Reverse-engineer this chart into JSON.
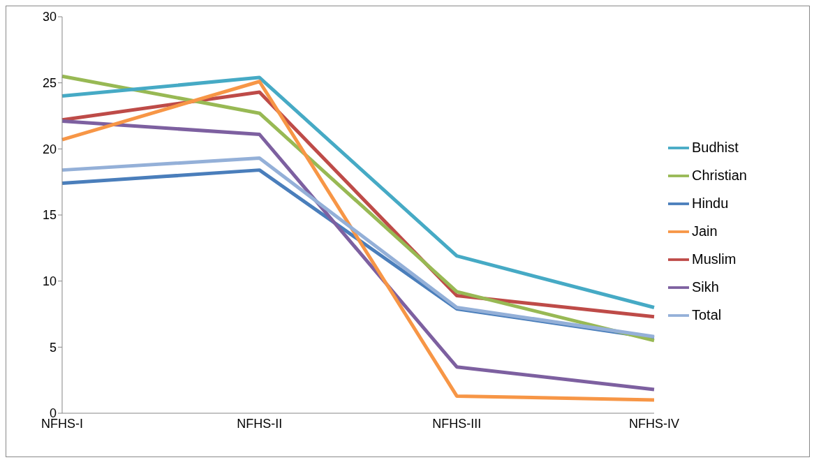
{
  "chart_data": {
    "type": "line",
    "categories": [
      "NFHS-I",
      "NFHS-II",
      "NFHS-III",
      "NFHS-IV"
    ],
    "series": [
      {
        "name": "Hindu",
        "color": "#4a7ebb",
        "values": [
          17.4,
          18.4,
          7.9,
          5.7
        ]
      },
      {
        "name": "Muslim",
        "color": "#be4b48",
        "values": [
          22.2,
          24.3,
          8.9,
          7.3
        ]
      },
      {
        "name": "Christian",
        "color": "#98b954",
        "values": [
          25.5,
          22.7,
          9.2,
          5.5
        ]
      },
      {
        "name": "Sikh",
        "color": "#7d60a0",
        "values": [
          22.1,
          21.1,
          3.5,
          1.8
        ]
      },
      {
        "name": "Budhist",
        "color": "#46aac5",
        "values": [
          24.0,
          25.4,
          11.9,
          8.0
        ]
      },
      {
        "name": "Jain",
        "color": "#f79646",
        "values": [
          20.7,
          25.1,
          1.3,
          1.0
        ]
      },
      {
        "name": "Total",
        "color": "#94b0d8",
        "values": [
          18.4,
          19.3,
          8.0,
          5.8
        ]
      }
    ],
    "ylim": [
      0,
      30
    ],
    "yticks": [
      0,
      5,
      10,
      15,
      20,
      25,
      30
    ],
    "grid": false,
    "legend": "right",
    "marker": "none",
    "line_style": "solid"
  }
}
